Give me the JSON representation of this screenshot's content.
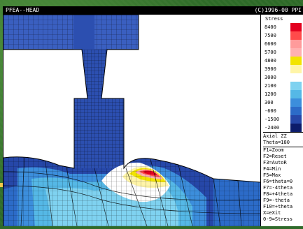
{
  "window": {
    "title_left": "PFEA--HEAD",
    "title_right": "(C)1996-00 PPI"
  },
  "legend": {
    "title": "Stress",
    "entries": [
      {
        "label": "8400",
        "color": "#e3001f"
      },
      {
        "label": "7500",
        "color": "#ff4b4b"
      },
      {
        "label": "6600",
        "color": "#ff9b9b"
      },
      {
        "label": "5700",
        "color": "#ffb0b0"
      },
      {
        "label": "4800",
        "color": "#f2e400"
      },
      {
        "label": "3900",
        "color": "#fff5a8"
      },
      {
        "label": "3000",
        "color": "#ffffff"
      },
      {
        "label": "2100",
        "color": "#7fd2f0"
      },
      {
        "label": "1200",
        "color": "#55b8e6"
      },
      {
        "label": "300",
        "color": "#3c8edc"
      },
      {
        "label": "-600",
        "color": "#2c6bc8"
      },
      {
        "label": "-1500",
        "color": "#2647a8"
      },
      {
        "label": "-2400",
        "color": "#0c1c6b"
      }
    ]
  },
  "view": {
    "component": "Axial ZZ",
    "theta": "Theta=180"
  },
  "function_keys": [
    "F1=Zoom",
    "F2=Reset",
    "F3=AutoR",
    "F4=Min",
    "F5=Max",
    "F6=theta=0",
    "F7=-4theta",
    "F8=+4theta",
    "F9=-theta",
    "F10=+theta",
    "X=eXit",
    "0-9=Stress"
  ]
}
